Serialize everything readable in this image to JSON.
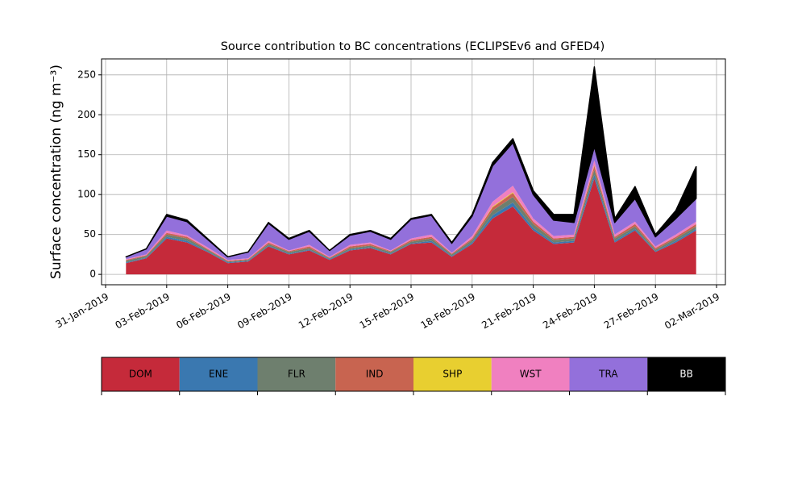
{
  "chart_data": {
    "type": "stacked_area",
    "title": "Source contribution to BC concentrations (ECLIPSEv6 and GFED4)",
    "y_label": "Surface concentration (ng m⁻³)",
    "x": [
      "2019-02-01",
      "2019-02-02",
      "2019-02-03",
      "2019-02-04",
      "2019-02-05",
      "2019-02-06",
      "2019-02-07",
      "2019-02-08",
      "2019-02-09",
      "2019-02-10",
      "2019-02-11",
      "2019-02-12",
      "2019-02-13",
      "2019-02-14",
      "2019-02-15",
      "2019-02-16",
      "2019-02-17",
      "2019-02-18",
      "2019-02-19",
      "2019-02-20",
      "2019-02-21",
      "2019-02-22",
      "2019-02-23",
      "2019-02-24",
      "2019-02-25",
      "2019-02-26",
      "2019-02-27",
      "2019-02-28",
      "2019-03-01"
    ],
    "series": [
      {
        "name": "DOM",
        "color": "#c52a3a",
        "values": [
          14,
          20,
          45,
          40,
          28,
          14,
          16,
          35,
          25,
          30,
          18,
          30,
          33,
          25,
          38,
          40,
          22,
          38,
          70,
          85,
          55,
          38,
          40,
          120,
          40,
          55,
          28,
          40,
          55
        ]
      },
      {
        "name": "ENE",
        "color": "#3a78b0",
        "values": [
          1,
          1,
          2,
          2,
          1,
          1,
          1,
          1,
          1,
          1,
          1,
          1,
          1,
          1,
          1,
          2,
          1,
          2,
          4,
          5,
          3,
          2,
          2,
          5,
          2,
          2,
          1,
          2,
          2
        ]
      },
      {
        "name": "FLR",
        "color": "#6e7f6e",
        "values": [
          2,
          2,
          3,
          3,
          2,
          1,
          1,
          2,
          2,
          2,
          1,
          2,
          2,
          2,
          2,
          3,
          2,
          3,
          6,
          7,
          5,
          3,
          3,
          6,
          3,
          3,
          2,
          3,
          3
        ]
      },
      {
        "name": "IND",
        "color": "#c86450",
        "values": [
          1,
          1,
          2,
          2,
          1,
          1,
          1,
          2,
          1,
          2,
          1,
          2,
          2,
          1,
          2,
          2,
          1,
          2,
          4,
          5,
          3,
          2,
          2,
          5,
          2,
          3,
          2,
          2,
          3
        ]
      },
      {
        "name": "SHP",
        "color": "#e8cf30",
        "values": [
          0,
          0,
          0,
          0,
          0,
          0,
          0,
          0,
          0,
          0,
          0,
          0,
          0,
          0,
          0,
          0,
          0,
          0,
          1,
          1,
          0,
          0,
          0,
          1,
          0,
          0,
          0,
          0,
          0
        ]
      },
      {
        "name": "WST",
        "color": "#f080c0",
        "values": [
          1,
          1,
          3,
          2,
          2,
          1,
          1,
          2,
          1,
          2,
          1,
          2,
          2,
          1,
          2,
          3,
          1,
          3,
          6,
          8,
          4,
          3,
          3,
          6,
          3,
          3,
          2,
          3,
          3
        ]
      },
      {
        "name": "TRA",
        "color": "#9370db",
        "values": [
          3,
          7,
          18,
          17,
          10,
          4,
          8,
          22,
          14,
          17,
          8,
          12,
          14,
          14,
          24,
          24,
          12,
          25,
          45,
          54,
          30,
          20,
          15,
          17,
          15,
          29,
          12,
          20,
          29
        ]
      },
      {
        "name": "BB",
        "color": "#000000",
        "values": [
          0,
          0,
          2,
          2,
          1,
          0,
          0,
          1,
          1,
          1,
          0,
          1,
          1,
          1,
          1,
          1,
          1,
          2,
          4,
          5,
          5,
          7,
          10,
          100,
          5,
          15,
          3,
          10,
          40
        ]
      }
    ],
    "xlim": [
      "2019-01-31",
      "2019-03-02"
    ],
    "xticks": [
      {
        "value": "2019-01-31",
        "label": "31-Jan-2019"
      },
      {
        "value": "2019-02-03",
        "label": "03-Feb-2019"
      },
      {
        "value": "2019-02-06",
        "label": "06-Feb-2019"
      },
      {
        "value": "2019-02-09",
        "label": "09-Feb-2019"
      },
      {
        "value": "2019-02-12",
        "label": "12-Feb-2019"
      },
      {
        "value": "2019-02-15",
        "label": "15-Feb-2019"
      },
      {
        "value": "2019-02-18",
        "label": "18-Feb-2019"
      },
      {
        "value": "2019-02-21",
        "label": "21-Feb-2019"
      },
      {
        "value": "2019-02-24",
        "label": "24-Feb-2019"
      },
      {
        "value": "2019-02-27",
        "label": "27-Feb-2019"
      },
      {
        "value": "2019-03-02",
        "label": "02-Mar-2019"
      }
    ],
    "ylim": [
      -13,
      270
    ],
    "yticks": [
      0,
      50,
      100,
      150,
      200,
      250
    ],
    "grid": true,
    "legend": "bottom"
  }
}
